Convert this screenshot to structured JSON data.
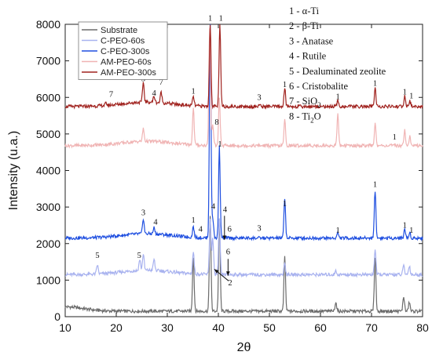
{
  "chart_data": {
    "type": "line",
    "xlabel": "2θ",
    "ylabel": "Intensity (u.a.)",
    "xlim": [
      10,
      80
    ],
    "ylim": [
      0,
      8000
    ],
    "xticks": [
      10,
      20,
      30,
      40,
      50,
      60,
      70,
      80
    ],
    "yticks": [
      0,
      1000,
      2000,
      3000,
      4000,
      5000,
      6000,
      7000,
      8000
    ],
    "legend_position": "top-left",
    "series": [
      {
        "name": "Substrate",
        "color": "#6b6b6b",
        "baseline": 150,
        "peaks": [
          [
            35.1,
            1500
          ],
          [
            38.4,
            2600
          ],
          [
            40.2,
            2500
          ],
          [
            53.0,
            1500
          ],
          [
            63.0,
            250
          ],
          [
            70.7,
            1500
          ],
          [
            76.3,
            400
          ],
          [
            77.4,
            250
          ]
        ]
      },
      {
        "name": "C-PEO-60s",
        "color": "#a8b2ef",
        "baseline": 1150,
        "peaks": [
          [
            16.3,
            250
          ],
          [
            24.6,
            300
          ],
          [
            25.3,
            450
          ],
          [
            27.4,
            300
          ],
          [
            35.1,
            600
          ],
          [
            38.4,
            1500
          ],
          [
            38.9,
            1000
          ],
          [
            40.2,
            1500
          ],
          [
            53.0,
            300
          ],
          [
            63.0,
            100
          ],
          [
            70.7,
            700
          ],
          [
            76.3,
            250
          ],
          [
            77.4,
            250
          ]
        ]
      },
      {
        "name": "C-PEO-300s",
        "color": "#1f4fe0",
        "baseline": 2150,
        "peaks": [
          [
            25.3,
            420
          ],
          [
            27.4,
            170
          ],
          [
            35.1,
            300
          ],
          [
            38.4,
            5800
          ],
          [
            38.9,
            550
          ],
          [
            40.2,
            2500
          ],
          [
            53.0,
            1100
          ],
          [
            63.4,
            150
          ],
          [
            70.7,
            1300
          ],
          [
            76.5,
            250
          ],
          [
            77.5,
            150
          ]
        ]
      },
      {
        "name": "AM-PEO-60s",
        "color": "#f0b4b4",
        "baseline": 4680,
        "peaks": [
          [
            25.3,
            350
          ],
          [
            35.1,
            1000
          ],
          [
            38.3,
            3200
          ],
          [
            38.9,
            600
          ],
          [
            40.2,
            1300
          ],
          [
            53.0,
            700
          ],
          [
            63.4,
            850
          ],
          [
            70.7,
            600
          ],
          [
            76.5,
            450
          ],
          [
            77.5,
            250
          ]
        ]
      },
      {
        "name": "AM-PEO-300s",
        "color": "#a0221e",
        "baseline": 5750,
        "peaks": [
          [
            18.0,
            60
          ],
          [
            25.3,
            550
          ],
          [
            27.4,
            170
          ],
          [
            28.8,
            300
          ],
          [
            35.1,
            250
          ],
          [
            38.4,
            2200
          ],
          [
            40.3,
            2200
          ],
          [
            48.0,
            50
          ],
          [
            53.0,
            500
          ],
          [
            63.4,
            150
          ],
          [
            70.7,
            500
          ],
          [
            76.5,
            280
          ],
          [
            77.5,
            150
          ]
        ]
      }
    ],
    "phase_legend": [
      "1 - α-Ti",
      "2 - β-Ti",
      "3 - Anatase",
      "4 - Rutile",
      "5 - Dealuminated zeolite",
      "6 - Cristobalite",
      "7 - SiO",
      "8 - Ti"
    ],
    "phase_legend_subscripts": {
      "7": "2",
      "8": "2"
    },
    "phase_legend_suffix": {
      "8": "O"
    },
    "annotations": [
      {
        "text": "1",
        "x": 38.4,
        "y": 8100
      },
      {
        "text": "1",
        "x": 40.5,
        "y": 8100
      },
      {
        "text": "3",
        "x": 25.3,
        "y": 6450
      },
      {
        "text": "7",
        "x": 28.8,
        "y": 6350
      },
      {
        "text": "4",
        "x": 27.4,
        "y": 6050
      },
      {
        "text": "7",
        "x": 19.0,
        "y": 6020
      },
      {
        "text": "1",
        "x": 35.1,
        "y": 6100
      },
      {
        "text": "3",
        "x": 48.0,
        "y": 5930
      },
      {
        "text": "1",
        "x": 53.0,
        "y": 6280
      },
      {
        "text": "1",
        "x": 63.4,
        "y": 5950
      },
      {
        "text": "1",
        "x": 70.7,
        "y": 6320
      },
      {
        "text": "1",
        "x": 76.5,
        "y": 6080
      },
      {
        "text": "1",
        "x": 77.8,
        "y": 5970
      },
      {
        "text": "8",
        "x": 39.7,
        "y": 5250
      },
      {
        "text": "1",
        "x": 74.5,
        "y": 4850
      },
      {
        "text": "1",
        "x": 40.3,
        "y": 4650
      },
      {
        "text": "1",
        "x": 70.7,
        "y": 3550
      },
      {
        "text": "3",
        "x": 25.3,
        "y": 2780
      },
      {
        "text": "4",
        "x": 27.7,
        "y": 2520
      },
      {
        "text": "1",
        "x": 35.1,
        "y": 2570
      },
      {
        "text": "4",
        "x": 36.5,
        "y": 2330
      },
      {
        "text": "4",
        "x": 39.0,
        "y": 2950
      },
      {
        "text": "4",
        "x": 41.3,
        "y": 2860
      },
      {
        "text": "6",
        "x": 42.2,
        "y": 2330
      },
      {
        "text": "3",
        "x": 48.0,
        "y": 2350
      },
      {
        "text": "1",
        "x": 53.0,
        "y": 3020
      },
      {
        "text": "1",
        "x": 63.4,
        "y": 2300
      },
      {
        "text": "1",
        "x": 76.5,
        "y": 2430
      },
      {
        "text": "1",
        "x": 77.8,
        "y": 2300
      },
      {
        "text": "5",
        "x": 16.3,
        "y": 1610
      },
      {
        "text": "5",
        "x": 24.5,
        "y": 1610
      },
      {
        "text": "6",
        "x": 41.9,
        "y": 1700
      },
      {
        "text": "2",
        "x": 42.3,
        "y": 860
      }
    ]
  }
}
